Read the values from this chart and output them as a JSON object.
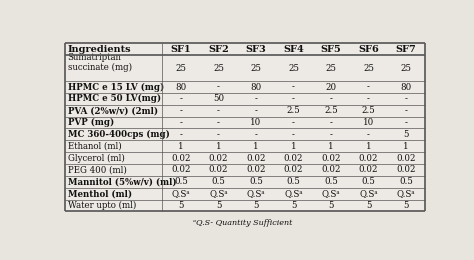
{
  "columns": [
    "Ingredients",
    "SF1",
    "SF2",
    "SF3",
    "SF4",
    "SF5",
    "SF6",
    "SF7"
  ],
  "rows": [
    [
      "Sumatriptan\nsuccinate (mg)",
      "25",
      "25",
      "25",
      "25",
      "25",
      "25",
      "25"
    ],
    [
      "HPMC e 15 LV (mg)",
      "80",
      "-",
      "80",
      "-",
      "20",
      "-",
      "80"
    ],
    [
      "HPMC e 50 LV(mg)",
      "-",
      "50",
      "-",
      "-",
      "-",
      "-",
      "-"
    ],
    [
      "PVA (2%w/v) (2ml)",
      "-",
      "-",
      "-",
      "2.5",
      "2.5",
      "2.5",
      "-"
    ],
    [
      "PVP (mg)",
      "-",
      "-",
      "10",
      "-",
      "-",
      "10",
      "-"
    ],
    [
      "MC 360-400cps (mg)",
      "-",
      "-",
      "-",
      "-",
      "-",
      "-",
      "5"
    ],
    [
      "Ethanol (ml)",
      "1",
      "1",
      "1",
      "1",
      "1",
      "1",
      "1"
    ],
    [
      "Glycerol (ml)",
      "0.02",
      "0.02",
      "0.02",
      "0.02",
      "0.02",
      "0.02",
      "0.02"
    ],
    [
      "PEG 400 (ml)",
      "0.02",
      "0.02",
      "0.02",
      "0.02",
      "0.02",
      "0.02",
      "0.02"
    ],
    [
      "Mannitol (5%w/v) (ml)",
      "0.5",
      "0.5",
      "0.5",
      "0.5",
      "0.5",
      "0.5",
      "0.5"
    ],
    [
      "Menthol (ml)",
      "Q.Sᵃ",
      "Q.Sᵃ",
      "Q.Sᵃ",
      "Q.Sᵃ",
      "Q.Sᵃ",
      "Q.Sᵃ",
      "Q.Sᵃ"
    ],
    [
      "Water upto (ml)",
      "5",
      "5",
      "5",
      "5",
      "5",
      "5",
      "5"
    ]
  ],
  "footnote": "ᵃQ.S- Quantity Sufficient",
  "bg_color": "#e8e4de",
  "cell_bg": "#edeae5",
  "line_color": "#555555",
  "thick_lw": 1.2,
  "thin_lw": 0.5,
  "header_fontsize": 7.0,
  "cell_fontsize": 6.2,
  "footnote_fontsize": 5.8,
  "col_widths_raw": [
    2.6,
    1,
    1,
    1,
    1,
    1,
    1,
    1
  ],
  "bold_ingredients": [
    "HPMC e 15 LV",
    "HPMC e 50 LV",
    "PVA",
    "PVP",
    "MC 360",
    "Mannitol",
    "Menthol"
  ]
}
